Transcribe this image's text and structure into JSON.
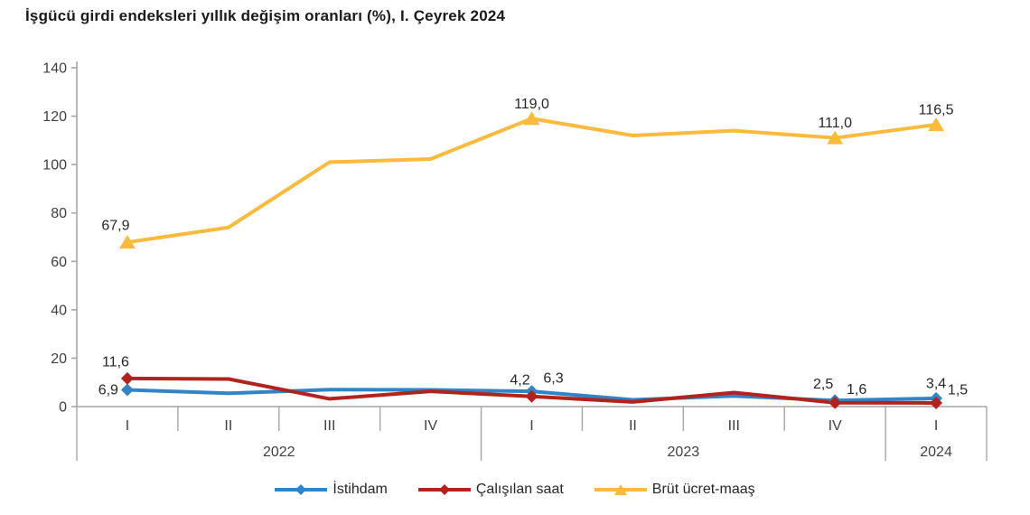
{
  "chart_data": {
    "type": "line",
    "title": "İşgücü girdi endeksleri yıllık değişim oranları (%), I. Çeyrek 2024",
    "ylim": [
      0,
      140
    ],
    "yticks": [
      0,
      20,
      40,
      60,
      80,
      100,
      120,
      140
    ],
    "grid": false,
    "legend_position": "bottom",
    "x_categories": [
      "I",
      "II",
      "III",
      "IV",
      "I",
      "II",
      "III",
      "IV",
      "I"
    ],
    "year_groups": [
      {
        "label": "2022",
        "count": 4
      },
      {
        "label": "2023",
        "count": 4
      },
      {
        "label": "2024",
        "count": 1
      }
    ],
    "axis_color": "#A6A6A6",
    "tick_label_color": "#3f3f3f",
    "data_label_color": "#262626",
    "series": [
      {
        "id": "istihdam",
        "name": "İstihdam",
        "color": "#3184C6",
        "marker": "diamond",
        "values": [
          6.9,
          5.5,
          7.0,
          6.9,
          6.3,
          2.8,
          4.4,
          2.5,
          3.4
        ],
        "point_labels": [
          {
            "index": 0,
            "text": "6,9",
            "anchor": "left"
          },
          {
            "index": 4,
            "text": "6,3",
            "anchor": "above-right"
          },
          {
            "index": 7,
            "text": "2,5",
            "anchor": "above-left"
          },
          {
            "index": 8,
            "text": "3,4",
            "anchor": "above"
          }
        ]
      },
      {
        "id": "calisilan-saat",
        "name": "Çalışılan saat",
        "color": "#B2231D",
        "marker": "diamond",
        "values": [
          11.6,
          11.4,
          3.2,
          6.3,
          4.2,
          1.9,
          5.8,
          1.6,
          1.5
        ],
        "point_labels": [
          {
            "index": 0,
            "text": "11,6",
            "anchor": "above-left"
          },
          {
            "index": 4,
            "text": "4,2",
            "anchor": "above-left"
          },
          {
            "index": 7,
            "text": "1,6",
            "anchor": "above-right"
          },
          {
            "index": 8,
            "text": "1,5",
            "anchor": "above-right"
          }
        ]
      },
      {
        "id": "brut-ucret-maas",
        "name": "Brüt ücret-maaş",
        "color": "#FABA3D",
        "marker": "triangle",
        "values": [
          67.9,
          74.0,
          101.0,
          102.3,
          119.0,
          112.0,
          114.0,
          111.0,
          116.5
        ],
        "point_labels": [
          {
            "index": 0,
            "text": "67,9",
            "anchor": "above-left"
          },
          {
            "index": 4,
            "text": "119,0",
            "anchor": "above"
          },
          {
            "index": 7,
            "text": "111,0",
            "anchor": "above"
          },
          {
            "index": 8,
            "text": "116,5",
            "anchor": "above"
          }
        ]
      }
    ]
  }
}
